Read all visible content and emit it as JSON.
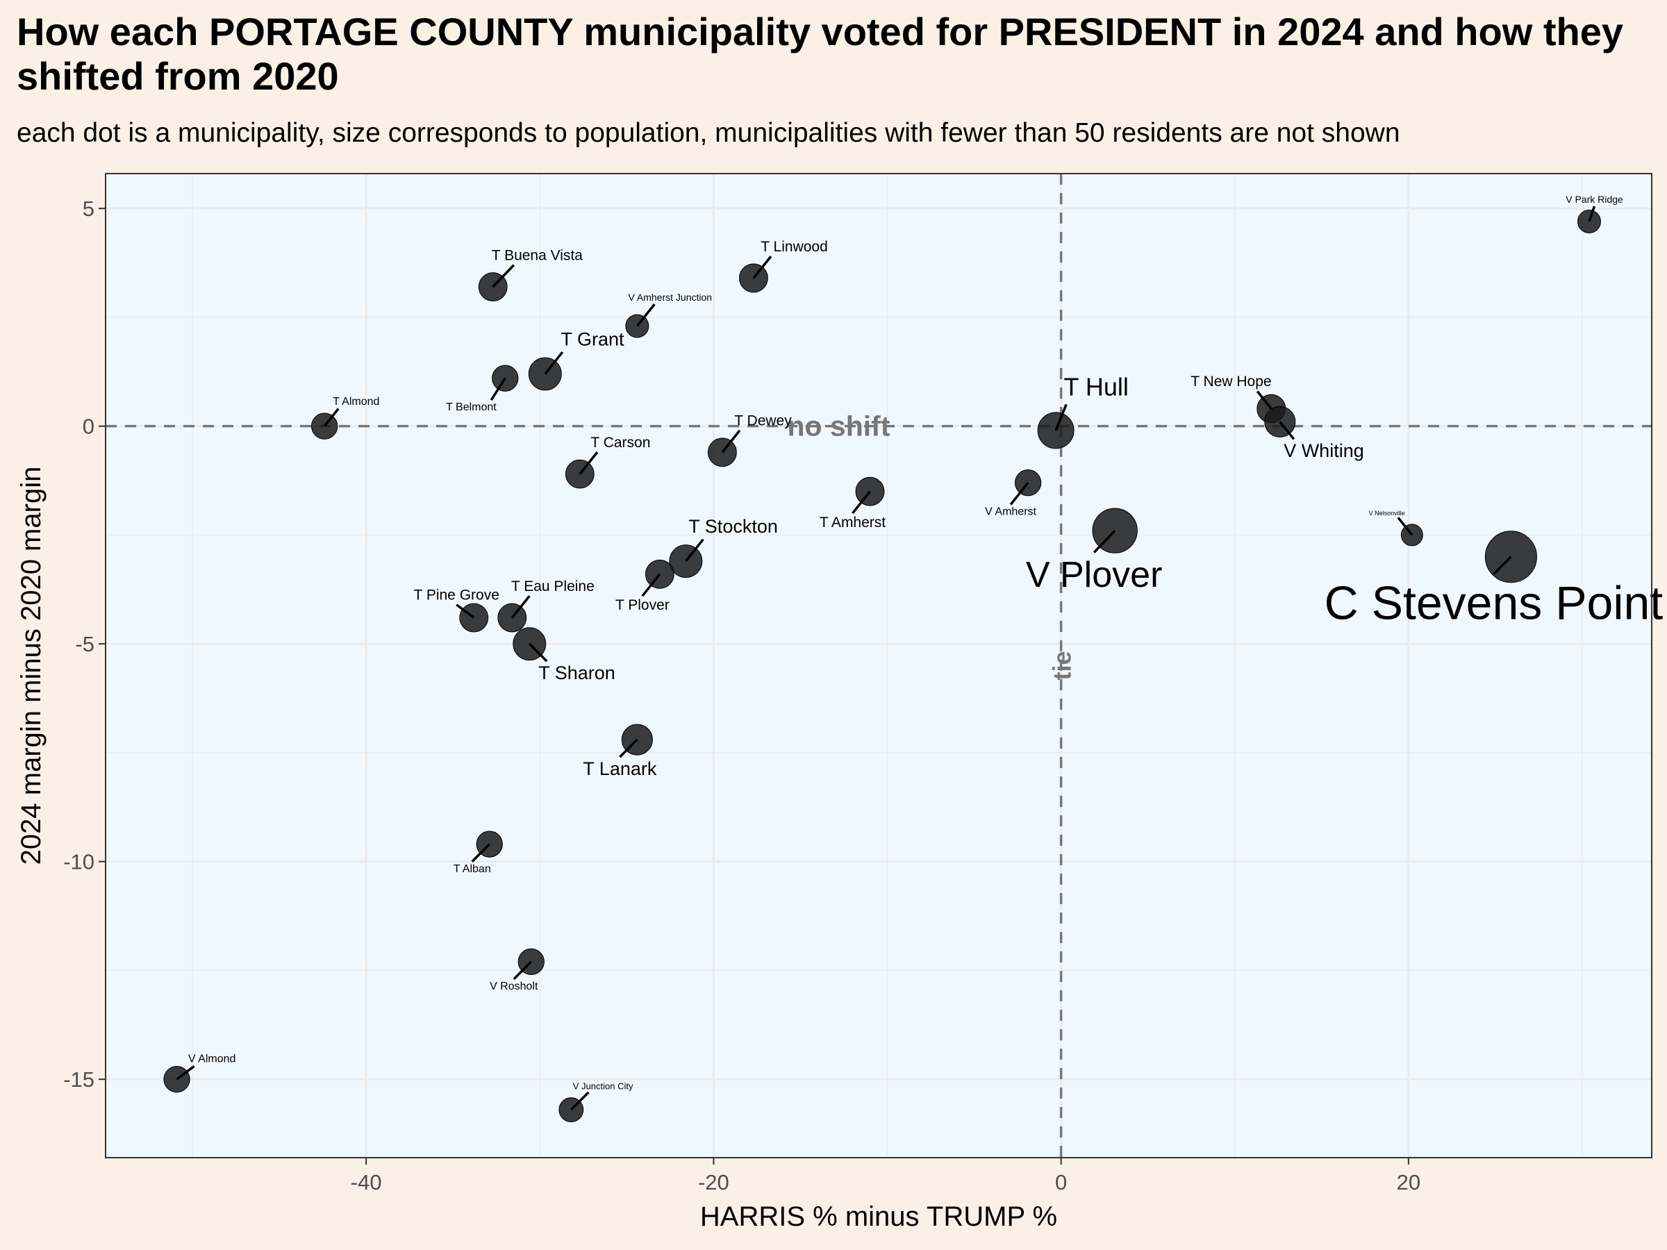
{
  "chart_data": {
    "type": "scatter",
    "title": "How each PORTAGE COUNTY municipality voted for PRESIDENT in 2024 and how they shifted from 2020",
    "subtitle": "each dot is a municipality, size corresponds to population, municipalities with fewer than 50 residents are not shown",
    "xlabel": "HARRIS % minus TRUMP %",
    "ylabel": "2024 margin minus 2020 margin",
    "xlim": [
      -55,
      34
    ],
    "ylim": [
      -16.8,
      5.8
    ],
    "x_ticks": [
      -40,
      -20,
      0,
      20
    ],
    "y_ticks": [
      5,
      0,
      -5,
      -10,
      -15
    ],
    "grid": true,
    "reference_lines": [
      {
        "axis": "y",
        "value": 0,
        "label": "no shift"
      },
      {
        "axis": "x",
        "value": 0,
        "label": "tie"
      }
    ],
    "colors": {
      "point": "#1a1a1a",
      "reference_line": "#777777",
      "panel": "#f0f8ff",
      "background": "#faf0e6"
    },
    "points": [
      {
        "name": "V Park Ridge",
        "x": 30.4,
        "y": 4.7,
        "size": 1
      },
      {
        "name": "T Buena Vista",
        "x": -32.7,
        "y": 3.2,
        "size": 2
      },
      {
        "name": "T Linwood",
        "x": -17.7,
        "y": 3.4,
        "size": 2
      },
      {
        "name": "V Amherst Junction",
        "x": -24.4,
        "y": 2.3,
        "size": 1
      },
      {
        "name": "T Grant",
        "x": -29.7,
        "y": 1.2,
        "size": 3
      },
      {
        "name": "T Belmont",
        "x": -32.0,
        "y": 1.1,
        "size": 1.5
      },
      {
        "name": "T Almond",
        "x": -42.4,
        "y": 0.0,
        "size": 1.5
      },
      {
        "name": "T Hull",
        "x": -0.3,
        "y": -0.1,
        "size": 4
      },
      {
        "name": "T New Hope",
        "x": 12.1,
        "y": 0.4,
        "size": 2
      },
      {
        "name": "V Whiting",
        "x": 12.6,
        "y": 0.1,
        "size": 2.5
      },
      {
        "name": "T Dewey",
        "x": -19.5,
        "y": -0.6,
        "size": 2
      },
      {
        "name": "T Carson",
        "x": -27.7,
        "y": -1.1,
        "size": 2
      },
      {
        "name": "T Amherst",
        "x": -11.0,
        "y": -1.5,
        "size": 2
      },
      {
        "name": "V Amherst",
        "x": -1.9,
        "y": -1.3,
        "size": 1.5
      },
      {
        "name": "V Plover",
        "x": 3.1,
        "y": -2.4,
        "size": 7
      },
      {
        "name": "V Nelsonville",
        "x": 20.2,
        "y": -2.5,
        "size": 0.8
      },
      {
        "name": "C Stevens Point",
        "x": 25.9,
        "y": -3.0,
        "size": 10
      },
      {
        "name": "T Stockton",
        "x": -21.6,
        "y": -3.1,
        "size": 3
      },
      {
        "name": "T Plover",
        "x": -23.1,
        "y": -3.4,
        "size": 2
      },
      {
        "name": "T Pine Grove",
        "x": -33.8,
        "y": -4.4,
        "size": 2
      },
      {
        "name": "T Eau Pleine",
        "x": -31.6,
        "y": -4.4,
        "size": 2
      },
      {
        "name": "T Sharon",
        "x": -30.6,
        "y": -5.0,
        "size": 3
      },
      {
        "name": "T Lanark",
        "x": -24.4,
        "y": -7.2,
        "size": 2.5
      },
      {
        "name": "T Alban",
        "x": -32.9,
        "y": -9.6,
        "size": 1.5
      },
      {
        "name": "V Rosholt",
        "x": -30.5,
        "y": -12.3,
        "size": 1.5
      },
      {
        "name": "V Almond",
        "x": -50.9,
        "y": -15.0,
        "size": 1.5
      },
      {
        "name": "V Junction City",
        "x": -28.2,
        "y": -15.7,
        "size": 1.2
      }
    ]
  }
}
